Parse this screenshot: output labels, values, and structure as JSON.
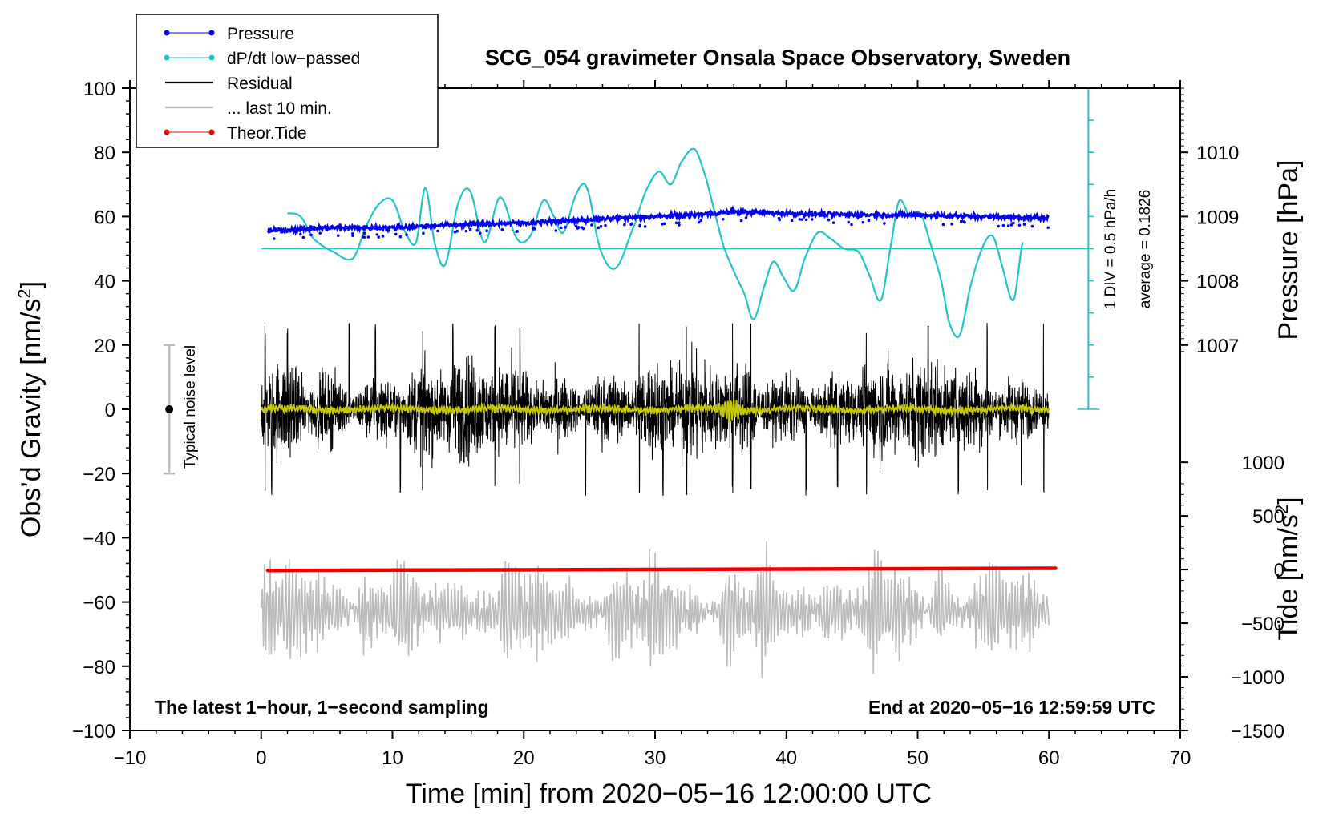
{
  "chart_data": {
    "type": "line",
    "title": "SCG_054 gravimeter Onsala Space Observatory, Sweden",
    "xlabel": "Time [min] from 2020−05−16 12:00:00 UTC",
    "ylabel_left": "Obs’d Gravity [nm/s²]",
    "ylabel_left_parts": {
      "prefix": "Obs’d Gravity [nm/s",
      "sup": "2",
      "suffix": "]"
    },
    "ylabel_right_pressure": "Pressure [hPa]",
    "ylabel_right_tide": "Tide [nm/s²]",
    "ylabel_right_tide_parts": {
      "prefix": "Tide [nm/s",
      "sup": "2",
      "suffix": "]"
    },
    "xlim": [
      -10,
      70
    ],
    "ylim": [
      -100,
      100
    ],
    "x_ticks": [
      "−10",
      "0",
      "10",
      "20",
      "30",
      "40",
      "50",
      "60",
      "70"
    ],
    "x_tick_values": [
      -10,
      0,
      10,
      20,
      30,
      40,
      50,
      60,
      70
    ],
    "y_ticks": [
      "100",
      "80",
      "60",
      "40",
      "20",
      "0",
      "−20",
      "−40",
      "−60",
      "−80",
      "−100"
    ],
    "y_tick_values": [
      100,
      80,
      60,
      40,
      20,
      0,
      -20,
      -40,
      -60,
      -80,
      -100
    ],
    "pressure_axis": {
      "ticks": [
        "1010",
        "1009",
        "1008",
        "1007"
      ],
      "tick_values": [
        1010,
        1009,
        1008,
        1007
      ],
      "mapping": "1010 hPa = 80, 1007 hPa = 20 (gravity units)"
    },
    "tide_axis": {
      "ticks": [
        "1000",
        "500",
        "0",
        "−500",
        "−1000",
        "−1500"
      ],
      "tick_values": [
        1000,
        500,
        0,
        -500,
        -1000,
        -1500
      ],
      "mapping": "1000 nm/s² = −16.5, −1500 = −100 (gravity units)"
    },
    "legend": [
      "Pressure",
      "dP/dt low−passed",
      "Residual",
      "... last 10 min.",
      "Theor.Tide"
    ],
    "legend_position": "top-left",
    "annotations": {
      "bottom_left": "The latest 1−hour, 1−second sampling",
      "bottom_right": "End at 2020−05−16 12:59:59 UTC",
      "scale_label": "1 DIV = 0.5 hPa/h",
      "average_label": "average = 0.1826",
      "noise_label": "Typical noise level"
    },
    "noise_bar": {
      "x": -7,
      "center": 0,
      "low": -20,
      "high": 20
    },
    "dpdt_scale_bar": {
      "x": 63,
      "top": 100,
      "bottom": 0,
      "baseline": 50,
      "div_step": 10
    },
    "series": [
      {
        "name": "Pressure",
        "color": "#0000ee",
        "style": "dotted-line",
        "x": [
          0.5,
          5,
          10,
          15,
          20,
          25,
          30,
          33,
          36,
          40,
          45,
          50,
          55,
          60
        ],
        "y": [
          55.5,
          56.5,
          56.5,
          57.5,
          58,
          59,
          60,
          60.5,
          61.5,
          61,
          60.5,
          60.5,
          60,
          59.5
        ],
        "noise": 0.5
      },
      {
        "name": "dP/dt low−passed",
        "color": "#22c4c4",
        "x": [
          2,
          3,
          4,
          5.5,
          7,
          8,
          9,
          10,
          11,
          11.8,
          12.5,
          13.2,
          14,
          15,
          15.9,
          17,
          18.2,
          19.5,
          20.5,
          21.5,
          22.3,
          23,
          24,
          24.8,
          25.8,
          27,
          28.5,
          29.3,
          30.3,
          31.2,
          32,
          33,
          33.8,
          34.5,
          35.2,
          36,
          36.8,
          37.5,
          38.3,
          39,
          39.8,
          40.6,
          41.4,
          42.4,
          43.4,
          44.4,
          45.5,
          46.3,
          47.2,
          48,
          48.6,
          49.4,
          50.2,
          51.1,
          51.8,
          52.4,
          53.2,
          54,
          54.9,
          55.7,
          56.4,
          57.3,
          58
        ],
        "y": [
          61,
          60,
          53,
          49,
          47,
          57,
          64,
          65,
          55,
          52,
          69,
          52,
          45,
          64,
          68,
          52,
          66,
          53,
          54,
          65,
          60,
          55,
          67,
          69,
          50,
          44,
          58,
          68,
          74,
          70,
          77,
          81,
          73,
          62,
          51,
          43,
          36,
          28,
          38,
          46,
          41,
          37,
          47,
          55,
          53,
          50,
          49,
          42,
          34,
          52,
          65,
          60,
          61,
          50,
          40,
          27,
          23,
          38,
          50,
          54,
          45,
          34,
          52
        ]
      },
      {
        "name": "Residual",
        "color": "#000000",
        "x_range": [
          0,
          60
        ],
        "amplitude": 15,
        "min": -27,
        "max": 29
      },
      {
        "name": "Residual (smoothed)",
        "color": "#c8c800",
        "x_range": [
          0,
          60
        ],
        "amplitude": 1
      },
      {
        "name": "... last 10 min.",
        "color": "#bbbbbb",
        "x_range": [
          0,
          60
        ],
        "center": -63,
        "amplitude": 13,
        "min": -90,
        "max": -35
      },
      {
        "name": "Theor.Tide",
        "color": "#ee0000",
        "x": [
          0.5,
          60.5
        ],
        "y": [
          -50.2,
          -49.5
        ]
      }
    ],
    "colors": {
      "pressure": "#0000ee",
      "dpdt": "#22c4c4",
      "residual": "#000000",
      "smooth": "#c8c800",
      "last10": "#bbbbbb",
      "tide": "#ee0000",
      "noise_bar": "#bbbbbb"
    }
  }
}
